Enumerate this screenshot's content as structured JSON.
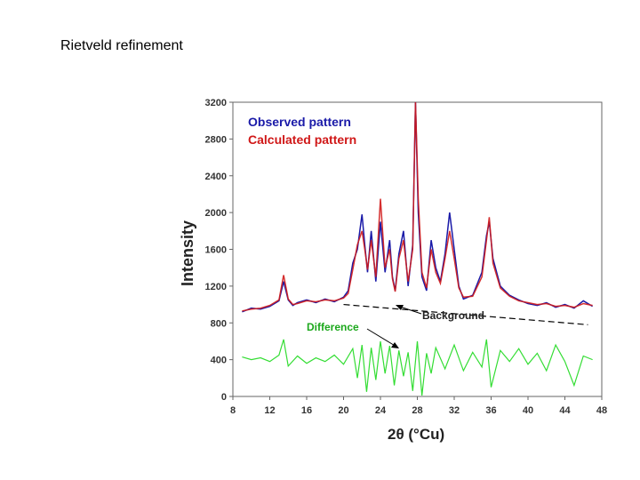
{
  "slide": {
    "title": "Rietveld refinement"
  },
  "chart_data": {
    "type": "line",
    "title": "",
    "xlabel": "2θ (°Cu)",
    "ylabel": "Intensity",
    "xlim": [
      8,
      48
    ],
    "ylim": [
      0,
      3200
    ],
    "x_ticks": [
      8,
      12,
      16,
      20,
      24,
      28,
      32,
      36,
      40,
      44,
      48
    ],
    "y_ticks": [
      0,
      400,
      800,
      1200,
      1600,
      2000,
      2400,
      2800,
      3200
    ],
    "grid": false,
    "legend_position": "top-left",
    "colors": {
      "observed": "#1a1aa8",
      "calculated": "#d01818",
      "difference": "#33dd33",
      "background": "#000000",
      "axis": "#555555"
    },
    "series": [
      {
        "name": "Observed pattern",
        "x": [
          9,
          10,
          11,
          12,
          13,
          13.5,
          14,
          14.5,
          15,
          16,
          17,
          18,
          19,
          20,
          20.5,
          21,
          21.5,
          22,
          22.3,
          22.6,
          23,
          23.5,
          24,
          24.5,
          25,
          25.3,
          25.6,
          26,
          26.5,
          27,
          27.5,
          27.8,
          28.1,
          28.5,
          29,
          29.5,
          30,
          30.5,
          31,
          31.5,
          32,
          32.5,
          33,
          34,
          35,
          35.5,
          35.8,
          36.2,
          37,
          38,
          39,
          40,
          41,
          42,
          43,
          44,
          45,
          46,
          47
        ],
        "values": [
          920,
          960,
          950,
          980,
          1040,
          1250,
          1050,
          990,
          1020,
          1050,
          1020,
          1060,
          1030,
          1080,
          1150,
          1450,
          1600,
          1980,
          1650,
          1350,
          1800,
          1250,
          1900,
          1350,
          1700,
          1300,
          1150,
          1550,
          1800,
          1200,
          1650,
          3200,
          2000,
          1300,
          1150,
          1700,
          1400,
          1250,
          1550,
          2000,
          1600,
          1200,
          1060,
          1100,
          1350,
          1750,
          1900,
          1500,
          1200,
          1100,
          1050,
          1010,
          990,
          1020,
          970,
          1000,
          960,
          1040,
          980
        ]
      },
      {
        "name": "Calculated pattern",
        "x": [
          9,
          10,
          11,
          12,
          13,
          13.5,
          14,
          14.5,
          15,
          16,
          17,
          18,
          19,
          20,
          20.5,
          21,
          21.5,
          22,
          22.3,
          22.6,
          23,
          23.5,
          24,
          24.5,
          25,
          25.3,
          25.6,
          26,
          26.5,
          27,
          27.5,
          27.8,
          28.1,
          28.5,
          29,
          29.5,
          30,
          30.5,
          31,
          31.5,
          32,
          32.5,
          33,
          34,
          35,
          35.5,
          35.8,
          36.2,
          37,
          38,
          39,
          40,
          41,
          42,
          43,
          44,
          45,
          46,
          47
        ],
        "values": [
          930,
          950,
          960,
          990,
          1050,
          1320,
          1060,
          1000,
          1010,
          1040,
          1030,
          1050,
          1040,
          1070,
          1120,
          1380,
          1650,
          1800,
          1600,
          1380,
          1700,
          1300,
          2150,
          1400,
          1600,
          1280,
          1140,
          1500,
          1700,
          1250,
          1600,
          3200,
          2150,
          1350,
          1180,
          1600,
          1350,
          1230,
          1500,
          1800,
          1500,
          1180,
          1080,
          1090,
          1300,
          1700,
          1950,
          1450,
          1180,
          1090,
          1040,
          1020,
          1000,
          1010,
          980,
          990,
          970,
          1010,
          990
        ]
      },
      {
        "name": "Background",
        "x": [
          20,
          46.5
        ],
        "values": [
          1000,
          780
        ]
      },
      {
        "name": "Difference",
        "x": [
          9,
          10,
          11,
          12,
          13,
          13.5,
          14,
          15,
          16,
          17,
          18,
          19,
          20,
          21,
          21.5,
          22,
          22.5,
          23,
          23.5,
          24,
          24.5,
          25,
          25.5,
          26,
          26.5,
          27,
          27.5,
          28,
          28.5,
          29,
          29.5,
          30,
          31,
          32,
          33,
          34,
          35,
          35.5,
          36,
          37,
          38,
          39,
          40,
          41,
          42,
          43,
          44,
          45,
          46,
          47
        ],
        "values": [
          430,
          400,
          420,
          380,
          450,
          620,
          330,
          440,
          360,
          420,
          380,
          450,
          350,
          520,
          200,
          560,
          50,
          530,
          180,
          600,
          250,
          550,
          120,
          500,
          220,
          480,
          60,
          600,
          10,
          470,
          250,
          530,
          300,
          560,
          280,
          480,
          320,
          620,
          100,
          500,
          380,
          520,
          350,
          470,
          280,
          560,
          380,
          120,
          440,
          400
        ]
      }
    ],
    "annotations": [
      {
        "text": "Background",
        "target": "background curve"
      },
      {
        "text": "Difference",
        "target": "difference curve"
      }
    ]
  }
}
